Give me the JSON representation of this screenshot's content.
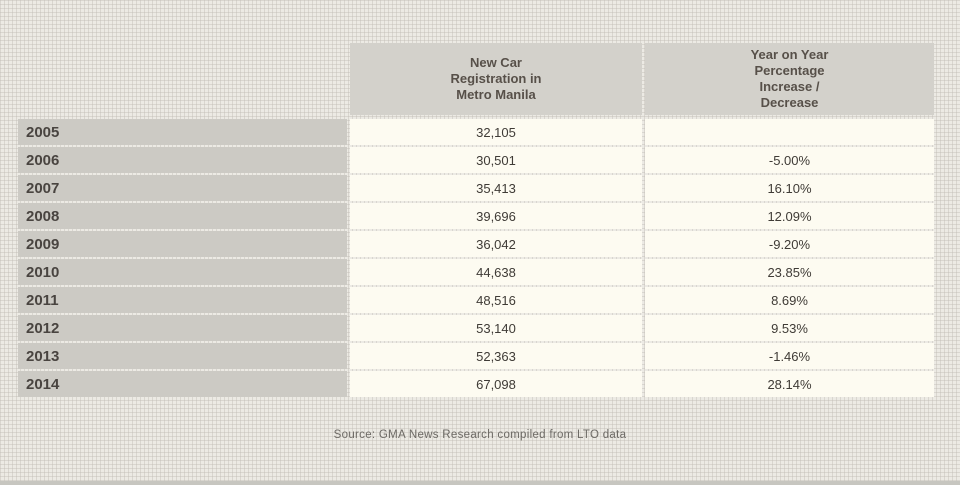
{
  "table": {
    "columns": [
      {
        "label": ""
      },
      {
        "label": "New Car\nRegistration in\nMetro Manila"
      },
      {
        "label": "Year on Year\nPercentage\nIncrease /\nDecrease"
      }
    ],
    "rows": [
      {
        "year": "2005",
        "registrations": "32,105",
        "yoy": ""
      },
      {
        "year": "2006",
        "registrations": "30,501",
        "yoy": "-5.00%"
      },
      {
        "year": "2007",
        "registrations": "35,413",
        "yoy": "16.10%"
      },
      {
        "year": "2008",
        "registrations": "39,696",
        "yoy": "12.09%"
      },
      {
        "year": "2009",
        "registrations": "36,042",
        "yoy": "-9.20%"
      },
      {
        "year": "2010",
        "registrations": "44,638",
        "yoy": "23.85%"
      },
      {
        "year": "2011",
        "registrations": "48,516",
        "yoy": "8.69%"
      },
      {
        "year": "2012",
        "registrations": "53,140",
        "yoy": "9.53%"
      },
      {
        "year": "2013",
        "registrations": "52,363",
        "yoy": "-1.46%"
      },
      {
        "year": "2014",
        "registrations": "67,098",
        "yoy": "28.14%"
      }
    ]
  },
  "source": "Source: GMA News Research compiled from LTO data",
  "colors": {
    "background": "#eceae4",
    "grid_line": "#c1beb6",
    "header_cell": "#d3d1cb",
    "year_cell": "#cccac4",
    "value_cell": "#fdfbf1",
    "text_dark": "#3f3b36",
    "source_text": "#6d6a65",
    "bottom_strip": "#c7c6c0"
  },
  "chart_data": {
    "type": "table",
    "categories": [
      "2005",
      "2006",
      "2007",
      "2008",
      "2009",
      "2010",
      "2011",
      "2012",
      "2013",
      "2014"
    ],
    "series": [
      {
        "name": "New Car Registration in Metro Manila",
        "values": [
          32105,
          30501,
          35413,
          39696,
          36042,
          44638,
          48516,
          53140,
          52363,
          67098
        ]
      },
      {
        "name": "Year on Year Percentage Increase / Decrease",
        "values": [
          null,
          -5.0,
          16.1,
          12.09,
          -9.2,
          23.85,
          8.69,
          9.53,
          -1.46,
          28.14
        ]
      }
    ],
    "title": "",
    "source": "Source: GMA News Research compiled from LTO data"
  }
}
